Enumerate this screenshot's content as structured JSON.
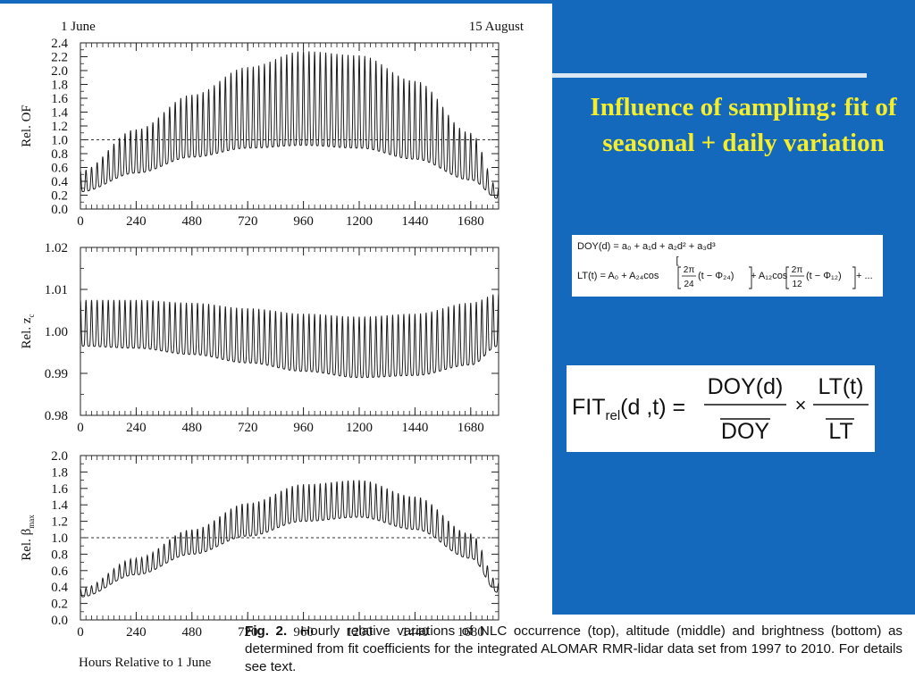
{
  "slide": {
    "title": "Influence of sampling: fit of seasonal + daily variation",
    "colors": {
      "background": "#1469bd",
      "title": "#f6ee2a",
      "panel": "#ffffff"
    }
  },
  "figure": {
    "top_left_label": "1 June",
    "top_right_label": "15 August",
    "x_axis_label": "Hours Relative to 1 June",
    "caption_lead": "Fig. 2.",
    "caption_text": "Hourly relative variations of NLC occurrence (top), altitude (middle) and brightness (bottom) as determined from fit coefficients for the integrated ALOMAR RMR-lidar data set from 1997 to 2010. For details see text."
  },
  "formulas": {
    "doy_lhs": "DOY(d) = ",
    "doy_rhs": "a₀ + a₁d + a₂d² + a₃d³",
    "lt_lhs": "LT(t) = A₀ + A₂₄cos",
    "lt_frac1_num": "2π",
    "lt_frac1_den": "24",
    "lt_mid1": "(t − Φ₂₄)",
    "lt_plus": "+ A₁₂cos",
    "lt_frac2_num": "2π",
    "lt_frac2_den": "12",
    "lt_mid2": "(t − Φ₁₂)",
    "lt_tail": "+ ...",
    "fit_lhs": "FIT",
    "fit_sub": "rel",
    "fit_args": "(d ,t) =",
    "fit_num1": "DOY(d)",
    "fit_den1": "DOY",
    "fit_times": "×",
    "fit_num2": "LT(t)",
    "fit_den2": "LT"
  },
  "chart_data": [
    {
      "type": "line",
      "ylabel": "Rel. OF",
      "xlim": [
        0,
        1800
      ],
      "ylim": [
        0.0,
        2.4
      ],
      "x_ticks": [
        0,
        240,
        480,
        720,
        960,
        1200,
        1440,
        1680
      ],
      "y_ticks": [
        "0.0",
        "0.2",
        "0.4",
        "0.6",
        "0.8",
        "1.0",
        "1.2",
        "1.4",
        "1.6",
        "1.8",
        "2.0",
        "2.2",
        "2.4"
      ],
      "reference_line": 1.0,
      "series": [
        {
          "upper_envelope": {
            "x": [
              0,
              240,
              480,
              720,
              960,
              1200,
              1440,
              1680,
              1800
            ],
            "y": [
              0.55,
              1.15,
              1.65,
              2.05,
              2.28,
              2.22,
              1.85,
              1.1,
              0.3
            ]
          },
          "lower_envelope": {
            "x": [
              0,
              240,
              480,
              720,
              960,
              1200,
              1440,
              1680,
              1800
            ],
            "y": [
              0.25,
              0.52,
              0.75,
              0.88,
              0.92,
              0.88,
              0.72,
              0.42,
              0.15
            ]
          }
        }
      ]
    },
    {
      "type": "line",
      "ylabel": "Rel. z",
      "ylabel_sub": "c",
      "xlim": [
        0,
        1800
      ],
      "ylim": [
        0.98,
        1.02
      ],
      "x_ticks": [
        0,
        240,
        480,
        720,
        960,
        1200,
        1440,
        1680
      ],
      "y_ticks": [
        "0.98",
        "0.99",
        "1.00",
        "1.01",
        "1.02"
      ],
      "reference_line": null,
      "series": [
        {
          "upper_envelope": {
            "x": [
              0,
              240,
              480,
              720,
              960,
              1200,
              1440,
              1680,
              1800
            ],
            "y": [
              1.0075,
              1.0075,
              1.0068,
              1.0055,
              1.0042,
              1.0035,
              1.0042,
              1.0068,
              1.009
            ]
          },
          "lower_envelope": {
            "x": [
              0,
              240,
              480,
              720,
              960,
              1200,
              1440,
              1680,
              1800
            ],
            "y": [
              0.9965,
              0.996,
              0.9945,
              0.9925,
              0.9905,
              0.989,
              0.9895,
              0.992,
              0.9965
            ]
          }
        }
      ]
    },
    {
      "type": "line",
      "ylabel": "Rel. β",
      "ylabel_sub": "max",
      "xlim": [
        0,
        1800
      ],
      "ylim": [
        0.0,
        2.0
      ],
      "x_ticks": [
        0,
        240,
        480,
        720,
        960,
        1200,
        1440,
        1680
      ],
      "y_ticks": [
        "0.0",
        "0.2",
        "0.4",
        "0.6",
        "0.8",
        "1.0",
        "1.2",
        "1.4",
        "1.6",
        "1.8",
        "2.0"
      ],
      "reference_line": 1.0,
      "series": [
        {
          "upper_envelope": {
            "x": [
              0,
              240,
              480,
              720,
              960,
              1200,
              1440,
              1680,
              1800
            ],
            "y": [
              0.38,
              0.75,
              1.1,
              1.42,
              1.65,
              1.7,
              1.5,
              1.05,
              0.45
            ]
          },
          "lower_envelope": {
            "x": [
              0,
              240,
              480,
              720,
              960,
              1200,
              1440,
              1680,
              1800
            ],
            "y": [
              0.28,
              0.55,
              0.8,
              1.02,
              1.2,
              1.25,
              1.1,
              0.75,
              0.33
            ]
          }
        }
      ]
    }
  ]
}
